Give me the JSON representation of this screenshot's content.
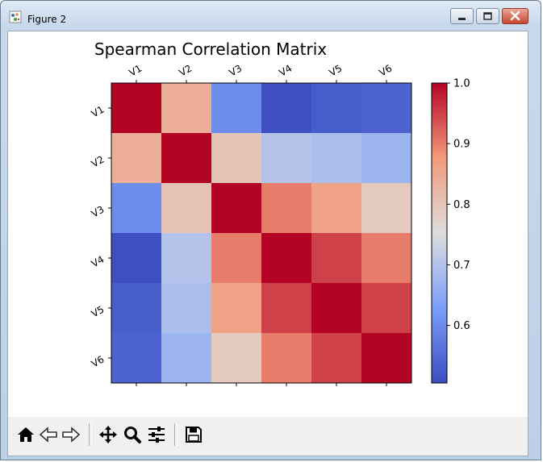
{
  "window": {
    "title": "Figure 2",
    "icon_name": "matplotlib-figure-icon",
    "controls": [
      "minimize-icon",
      "maximize-icon",
      "close-icon"
    ]
  },
  "toolbar": {
    "buttons": [
      {
        "name": "home-icon",
        "tooltip": "Home"
      },
      {
        "name": "back-arrow-icon",
        "tooltip": "Back"
      },
      {
        "name": "forward-arrow-icon",
        "tooltip": "Forward"
      },
      {
        "name": "pan-icon",
        "tooltip": "Pan"
      },
      {
        "name": "zoom-icon",
        "tooltip": "Zoom"
      },
      {
        "name": "subplots-config-icon",
        "tooltip": "Configure subplots"
      },
      {
        "name": "save-icon",
        "tooltip": "Save"
      }
    ]
  },
  "chart_data": {
    "type": "heatmap",
    "title": "Spearman Correlation Matrix",
    "xlabel": "",
    "ylabel": "",
    "x_labels": [
      "V1",
      "V2",
      "V3",
      "V4",
      "V5",
      "V6"
    ],
    "y_labels": [
      "V1",
      "V2",
      "V3",
      "V4",
      "V5",
      "V6"
    ],
    "x_tick_position": "top",
    "tick_label_rotation_deg": 30,
    "values": [
      [
        1.0,
        0.84,
        0.6,
        0.51,
        0.53,
        0.54
      ],
      [
        0.84,
        1.0,
        0.8,
        0.7,
        0.69,
        0.67
      ],
      [
        0.6,
        0.8,
        1.0,
        0.9,
        0.86,
        0.79
      ],
      [
        0.51,
        0.7,
        0.9,
        1.0,
        0.95,
        0.9
      ],
      [
        0.53,
        0.69,
        0.86,
        0.95,
        1.0,
        0.95
      ],
      [
        0.54,
        0.67,
        0.79,
        0.9,
        0.95,
        1.0
      ]
    ],
    "colormap": "coolwarm",
    "colorbar": {
      "vmin": 0.505,
      "vmax": 1.0,
      "ticks": [
        0.6,
        0.7,
        0.8,
        0.9,
        1.0
      ],
      "tick_labels": [
        "0.6",
        "0.7",
        "0.8",
        "0.9",
        "1.0"
      ]
    },
    "grid": false
  }
}
